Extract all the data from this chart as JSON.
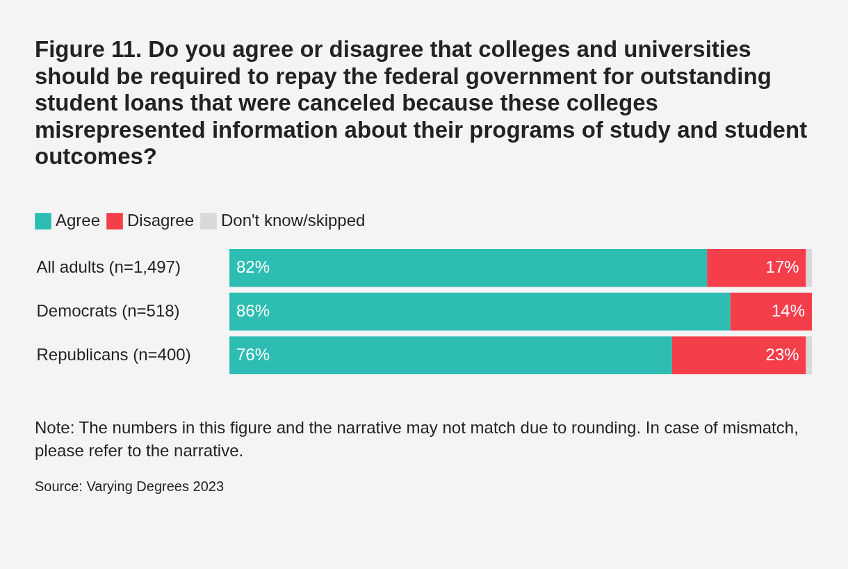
{
  "chart_data": {
    "type": "bar",
    "orientation": "horizontal",
    "stacked": true,
    "title": "Figure 11. Do you agree or disagree that colleges and universities should be required to repay the federal government for outstanding student loans that were canceled because these colleges misrepresented information about their programs of study and student outcomes?",
    "categories": [
      "All adults (n=1,497)",
      "Democrats (n=518)",
      "Republicans (n=400)"
    ],
    "series": [
      {
        "name": "Agree",
        "color": "#2ebdb3",
        "values": [
          82,
          86,
          76
        ],
        "value_labels": [
          "82%",
          "86%",
          "76%"
        ]
      },
      {
        "name": "Disagree",
        "color": "#f43f4b",
        "values": [
          17,
          14,
          23
        ],
        "value_labels": [
          "17%",
          "14%",
          "23%"
        ]
      },
      {
        "name": "Don't know/skipped",
        "color": "#d9d9d9",
        "values": [
          1,
          0,
          1
        ]
      }
    ],
    "legend": "top left",
    "annotations": [
      "Note: The numbers in this figure and the narrative may not match due to rounding. In case of mismatch, please refer to the narrative.",
      "Source: Varying Degrees 2023"
    ]
  }
}
